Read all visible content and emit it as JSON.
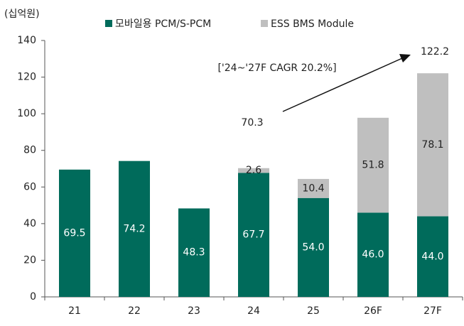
{
  "chart_data": {
    "type": "stacked_bar",
    "unit_label": "(십억원)",
    "categories": [
      "21",
      "22",
      "23",
      "24",
      "25",
      "26F",
      "27F"
    ],
    "series": [
      {
        "name": "모바일용 PCM/S-PCM",
        "color": "#006b5b",
        "values": [
          69.5,
          74.2,
          48.3,
          67.7,
          54.0,
          46.0,
          44.0
        ],
        "value_labels": [
          "69.5",
          "74.2",
          "48.3",
          "67.7",
          "54.0",
          "46.0",
          "44.0"
        ]
      },
      {
        "name": "ESS BMS Module",
        "color": "#bfbfbf",
        "values": [
          null,
          null,
          null,
          2.6,
          10.4,
          51.8,
          78.1
        ]
      }
    ],
    "annotations": [
      "70.3",
      "122.2",
      "['24~'27F CAGR 20.2%]"
    ],
    "ylim": [
      0,
      140
    ],
    "yticks": [
      0,
      20,
      40,
      60,
      80,
      100,
      120,
      140
    ]
  }
}
